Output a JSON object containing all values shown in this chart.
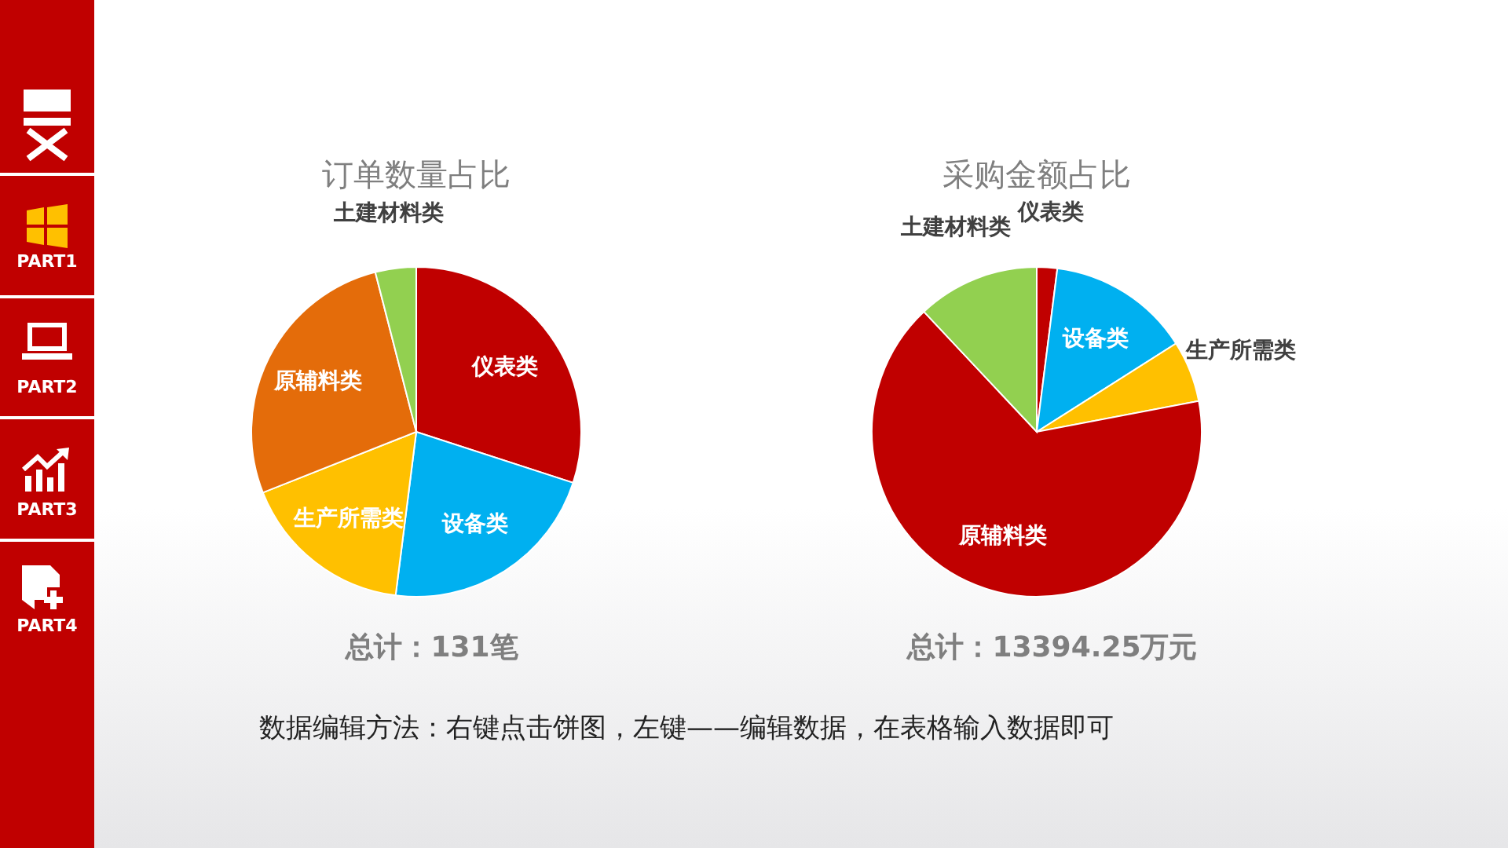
{
  "chart_data": [
    {
      "type": "pie",
      "title": "订单数量占比",
      "categories": [
        "仪表类",
        "设备类",
        "生产所需类",
        "原辅料类",
        "土建材料类"
      ],
      "values": [
        30,
        22,
        17,
        27,
        4
      ],
      "colors": [
        "#c00000",
        "#00b0f0",
        "#ffc000",
        "#e46c0a",
        "#92d050"
      ],
      "annotations": [
        "总计：131笔"
      ]
    },
    {
      "type": "pie",
      "title": "采购金额占比",
      "categories": [
        "仪表类",
        "设备类",
        "生产所需类",
        "原辅料类",
        "土建材料类"
      ],
      "values": [
        2,
        14,
        6,
        66,
        12
      ],
      "colors": [
        "#c00000",
        "#00b0f0",
        "#ffc000",
        "#c00000",
        "#92d050"
      ],
      "annotations": [
        "总计：13394.25万元",
        "数据编辑方法：右键点击饼图，左键——编辑数据，在表格输入数据即可"
      ]
    },
    {
      "type": "other",
      "annotations": [
        "PART1",
        "PART2",
        "PART3",
        "PART4"
      ]
    }
  ]
}
